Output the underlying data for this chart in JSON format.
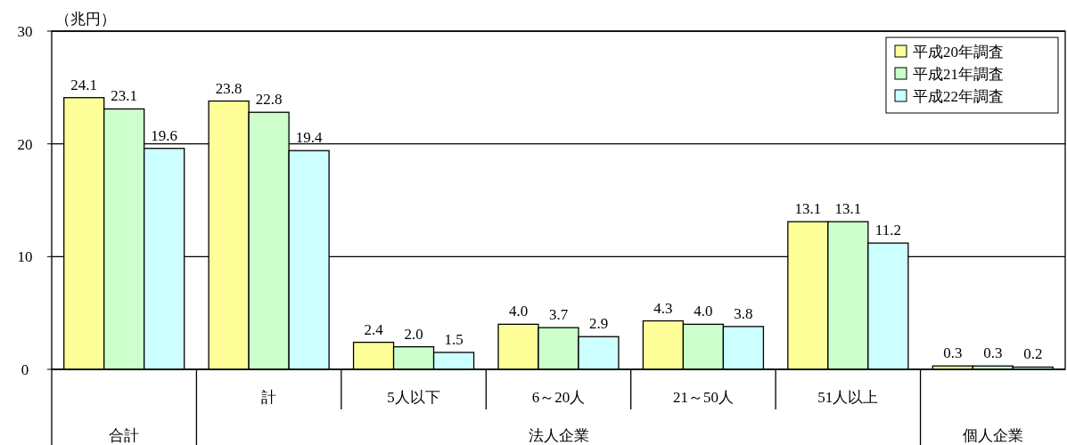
{
  "chart_data": {
    "type": "bar",
    "ylabel": "（兆円）",
    "categories": [
      null,
      "計",
      "5人以下",
      "6～20人",
      "21～50人",
      "51人以上",
      null
    ],
    "series": [
      {
        "name": "平成20年調査",
        "color": "#ffff99",
        "values": [
          24.1,
          23.8,
          2.4,
          4.0,
          4.3,
          13.1,
          0.3
        ],
        "value_labels": [
          "24.1",
          "23.8",
          "2.4",
          "4.0",
          "4.3",
          "13.1",
          "0.3"
        ]
      },
      {
        "name": "平成21年調査",
        "color": "#ccffcc",
        "values": [
          23.1,
          22.8,
          2.0,
          3.7,
          4.0,
          13.1,
          0.3
        ],
        "value_labels": [
          "23.1",
          "22.8",
          "2.0",
          "3.7",
          "4.0",
          "13.1",
          "0.3"
        ]
      },
      {
        "name": "平成22年調査",
        "color": "#ccffff",
        "values": [
          19.6,
          19.4,
          1.5,
          2.9,
          3.8,
          11.2,
          0.2
        ],
        "value_labels": [
          "19.6",
          "19.4",
          "1.5",
          "2.9",
          "3.8",
          "11.2",
          "0.2"
        ]
      }
    ],
    "annotations": [
      "合計",
      "法人企業",
      "個人企業"
    ],
    "ylim": [
      0,
      30
    ],
    "yticks": [
      0,
      10,
      20,
      30
    ],
    "grid": "y",
    "legend": "top right"
  }
}
